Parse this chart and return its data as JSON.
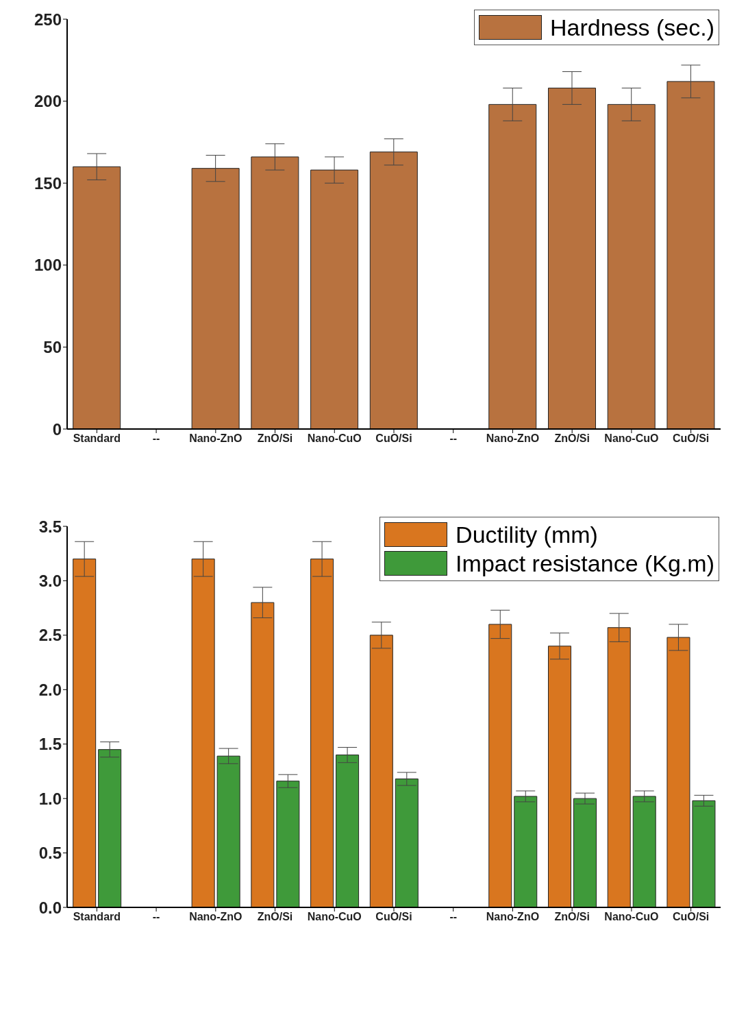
{
  "chart_data": [
    {
      "type": "bar",
      "categories": [
        "Standard",
        "--",
        "Nano-ZnO",
        "ZnO/Si",
        "Nano-CuO",
        "CuO/Si",
        "--",
        "Nano-ZnO",
        "ZnO/Si",
        "Nano-CuO",
        "CuO/Si"
      ],
      "series": [
        {
          "name": "Hardness (sec.)",
          "color": "#b8723f",
          "values": [
            160,
            null,
            159,
            166,
            158,
            169,
            null,
            198,
            208,
            198,
            212
          ],
          "errors": [
            8,
            null,
            8,
            8,
            8,
            8,
            null,
            10,
            10,
            10,
            10
          ]
        }
      ],
      "ylim": [
        0,
        250
      ],
      "yticks": [
        0,
        50,
        100,
        150,
        200,
        250
      ],
      "legend": "top right"
    },
    {
      "type": "bar",
      "categories": [
        "Standard",
        "--",
        "Nano-ZnO",
        "ZnO/Si",
        "Nano-CuO",
        "CuO/Si",
        "--",
        "Nano-ZnO",
        "ZnO/Si",
        "Nano-CuO",
        "CuO/Si"
      ],
      "series": [
        {
          "name": "Ductility (mm)",
          "color": "#d9761f",
          "values": [
            3.2,
            null,
            3.2,
            2.8,
            3.2,
            2.5,
            null,
            2.6,
            2.4,
            2.57,
            2.48
          ],
          "errors": [
            0.16,
            null,
            0.16,
            0.14,
            0.16,
            0.12,
            null,
            0.13,
            0.12,
            0.13,
            0.12
          ]
        },
        {
          "name": "Impact resistance (Kg.m)",
          "color": "#3f9a3a",
          "values": [
            1.45,
            null,
            1.39,
            1.16,
            1.4,
            1.18,
            null,
            1.02,
            1.0,
            1.02,
            0.98
          ],
          "errors": [
            0.07,
            null,
            0.07,
            0.06,
            0.07,
            0.06,
            null,
            0.05,
            0.05,
            0.05,
            0.05
          ]
        }
      ],
      "ylim": [
        0,
        3.5
      ],
      "yticks": [
        {
          "value": 0,
          "label": "0.0"
        },
        0.5,
        {
          "value": 1,
          "label": "1.0"
        },
        1.5,
        {
          "value": 2,
          "label": "2.0"
        },
        2.5,
        {
          "value": 3,
          "label": "3.0"
        },
        3.5
      ],
      "legend": "top right"
    }
  ]
}
